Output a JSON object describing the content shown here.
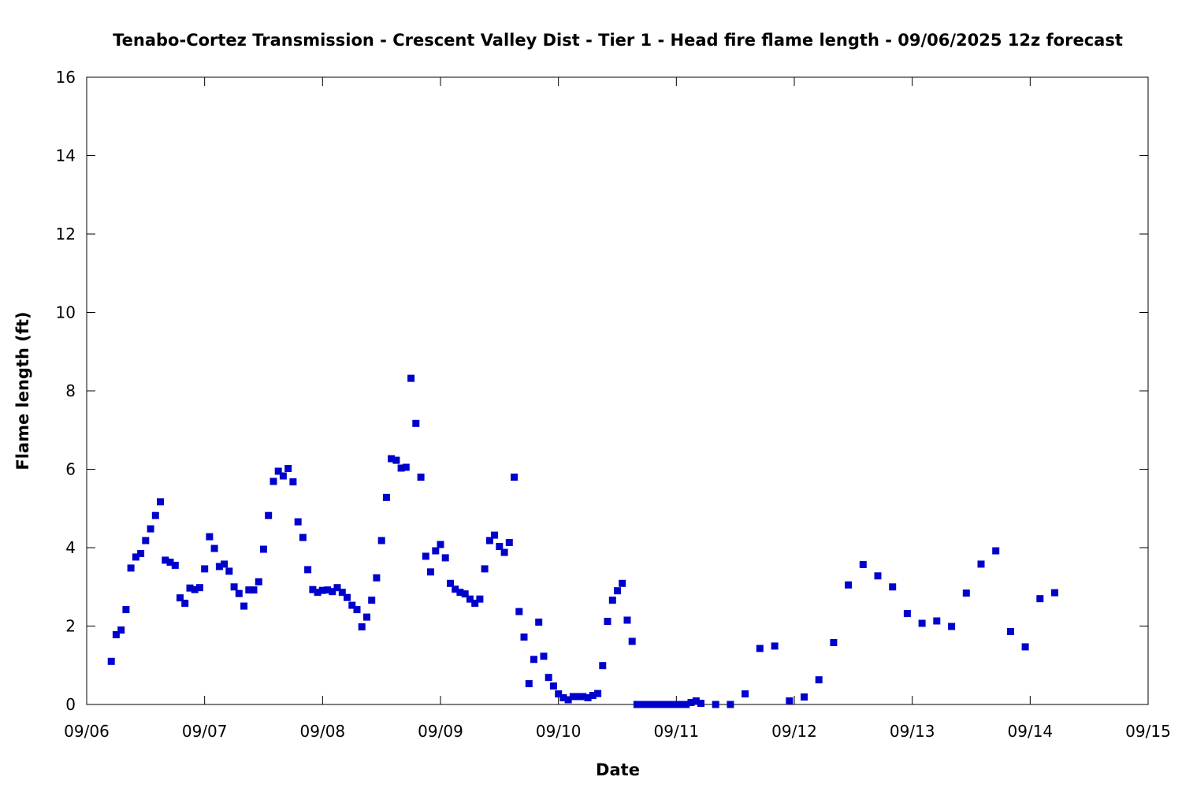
{
  "chart_data": {
    "type": "scatter",
    "title": "Tenabo-Cortez Transmission - Crescent Valley Dist - Tier 1 - Head fire flame length - 09/06/2025 12z forecast",
    "xlabel": "Date",
    "ylabel": "Flame length (ft)",
    "xlim": [
      "09/06",
      "09/15"
    ],
    "ylim": [
      0,
      16
    ],
    "x_ticks": [
      "09/06",
      "09/07",
      "09/08",
      "09/09",
      "09/10",
      "09/11",
      "09/12",
      "09/13",
      "09/14",
      "09/15"
    ],
    "y_ticks": [
      "0",
      "2",
      "4",
      "6",
      "8",
      "10",
      "12",
      "14",
      "16"
    ],
    "marker_color": "#0000cc",
    "grid": false,
    "points": [
      {
        "x": "09/06 05:00",
        "y": 1.1
      },
      {
        "x": "09/06 06:00",
        "y": 1.78
      },
      {
        "x": "09/06 07:00",
        "y": 1.9
      },
      {
        "x": "09/06 08:00",
        "y": 2.42
      },
      {
        "x": "09/06 09:00",
        "y": 3.48
      },
      {
        "x": "09/06 10:00",
        "y": 3.76
      },
      {
        "x": "09/06 11:00",
        "y": 3.85
      },
      {
        "x": "09/06 12:00",
        "y": 4.18
      },
      {
        "x": "09/06 13:00",
        "y": 4.48
      },
      {
        "x": "09/06 14:00",
        "y": 4.82
      },
      {
        "x": "09/06 15:00",
        "y": 5.17
      },
      {
        "x": "09/06 16:00",
        "y": 3.68
      },
      {
        "x": "09/06 17:00",
        "y": 3.63
      },
      {
        "x": "09/06 18:00",
        "y": 3.55
      },
      {
        "x": "09/06 19:00",
        "y": 2.72
      },
      {
        "x": "09/06 20:00",
        "y": 2.58
      },
      {
        "x": "09/06 21:00",
        "y": 2.97
      },
      {
        "x": "09/06 22:00",
        "y": 2.93
      },
      {
        "x": "09/06 23:00",
        "y": 2.98
      },
      {
        "x": "09/07 00:00",
        "y": 3.46
      },
      {
        "x": "09/07 01:00",
        "y": 4.28
      },
      {
        "x": "09/07 02:00",
        "y": 3.98
      },
      {
        "x": "09/07 03:00",
        "y": 3.52
      },
      {
        "x": "09/07 04:00",
        "y": 3.58
      },
      {
        "x": "09/07 05:00",
        "y": 3.4
      },
      {
        "x": "09/07 06:00",
        "y": 3.0
      },
      {
        "x": "09/07 07:00",
        "y": 2.83
      },
      {
        "x": "09/07 08:00",
        "y": 2.51
      },
      {
        "x": "09/07 09:00",
        "y": 2.92
      },
      {
        "x": "09/07 10:00",
        "y": 2.92
      },
      {
        "x": "09/07 11:00",
        "y": 3.13
      },
      {
        "x": "09/07 12:00",
        "y": 3.96
      },
      {
        "x": "09/07 13:00",
        "y": 4.82
      },
      {
        "x": "09/07 14:00",
        "y": 5.69
      },
      {
        "x": "09/07 15:00",
        "y": 5.95
      },
      {
        "x": "09/07 16:00",
        "y": 5.83
      },
      {
        "x": "09/07 17:00",
        "y": 6.02
      },
      {
        "x": "09/07 18:00",
        "y": 5.68
      },
      {
        "x": "09/07 19:00",
        "y": 4.66
      },
      {
        "x": "09/07 20:00",
        "y": 4.26
      },
      {
        "x": "09/07 21:00",
        "y": 3.44
      },
      {
        "x": "09/07 22:00",
        "y": 2.93
      },
      {
        "x": "09/07 23:00",
        "y": 2.86
      },
      {
        "x": "09/08 00:00",
        "y": 2.91
      },
      {
        "x": "09/08 01:00",
        "y": 2.92
      },
      {
        "x": "09/08 02:00",
        "y": 2.88
      },
      {
        "x": "09/08 03:00",
        "y": 2.98
      },
      {
        "x": "09/08 04:00",
        "y": 2.86
      },
      {
        "x": "09/08 05:00",
        "y": 2.73
      },
      {
        "x": "09/08 06:00",
        "y": 2.53
      },
      {
        "x": "09/08 07:00",
        "y": 2.42
      },
      {
        "x": "09/08 08:00",
        "y": 1.98
      },
      {
        "x": "09/08 09:00",
        "y": 2.23
      },
      {
        "x": "09/08 10:00",
        "y": 2.66
      },
      {
        "x": "09/08 11:00",
        "y": 3.23
      },
      {
        "x": "09/08 12:00",
        "y": 4.18
      },
      {
        "x": "09/08 13:00",
        "y": 5.28
      },
      {
        "x": "09/08 14:00",
        "y": 6.27
      },
      {
        "x": "09/08 15:00",
        "y": 6.23
      },
      {
        "x": "09/08 16:00",
        "y": 6.03
      },
      {
        "x": "09/08 17:00",
        "y": 6.05
      },
      {
        "x": "09/08 18:00",
        "y": 8.32
      },
      {
        "x": "09/08 19:00",
        "y": 7.17
      },
      {
        "x": "09/08 20:00",
        "y": 5.8
      },
      {
        "x": "09/08 21:00",
        "y": 3.78
      },
      {
        "x": "09/08 22:00",
        "y": 3.38
      },
      {
        "x": "09/08 23:00",
        "y": 3.92
      },
      {
        "x": "09/09 00:00",
        "y": 4.08
      },
      {
        "x": "09/09 01:00",
        "y": 3.74
      },
      {
        "x": "09/09 02:00",
        "y": 3.09
      },
      {
        "x": "09/09 03:00",
        "y": 2.94
      },
      {
        "x": "09/09 04:00",
        "y": 2.86
      },
      {
        "x": "09/09 05:00",
        "y": 2.82
      },
      {
        "x": "09/09 06:00",
        "y": 2.69
      },
      {
        "x": "09/09 07:00",
        "y": 2.58
      },
      {
        "x": "09/09 08:00",
        "y": 2.69
      },
      {
        "x": "09/09 09:00",
        "y": 3.46
      },
      {
        "x": "09/09 10:00",
        "y": 4.18
      },
      {
        "x": "09/09 11:00",
        "y": 4.32
      },
      {
        "x": "09/09 12:00",
        "y": 4.03
      },
      {
        "x": "09/09 13:00",
        "y": 3.88
      },
      {
        "x": "09/09 14:00",
        "y": 4.13
      },
      {
        "x": "09/09 15:00",
        "y": 5.8
      },
      {
        "x": "09/09 16:00",
        "y": 2.37
      },
      {
        "x": "09/09 17:00",
        "y": 1.72
      },
      {
        "x": "09/09 18:00",
        "y": 0.53
      },
      {
        "x": "09/09 19:00",
        "y": 1.15
      },
      {
        "x": "09/09 20:00",
        "y": 2.1
      },
      {
        "x": "09/09 21:00",
        "y": 1.23
      },
      {
        "x": "09/09 22:00",
        "y": 0.69
      },
      {
        "x": "09/09 23:00",
        "y": 0.47
      },
      {
        "x": "09/10 00:00",
        "y": 0.27
      },
      {
        "x": "09/10 01:00",
        "y": 0.17
      },
      {
        "x": "09/10 02:00",
        "y": 0.12
      },
      {
        "x": "09/10 03:00",
        "y": 0.2
      },
      {
        "x": "09/10 04:00",
        "y": 0.2
      },
      {
        "x": "09/10 05:00",
        "y": 0.2
      },
      {
        "x": "09/10 06:00",
        "y": 0.17
      },
      {
        "x": "09/10 07:00",
        "y": 0.23
      },
      {
        "x": "09/10 08:00",
        "y": 0.28
      },
      {
        "x": "09/10 09:00",
        "y": 0.99
      },
      {
        "x": "09/10 10:00",
        "y": 2.12
      },
      {
        "x": "09/10 11:00",
        "y": 2.66
      },
      {
        "x": "09/10 12:00",
        "y": 2.9
      },
      {
        "x": "09/10 13:00",
        "y": 3.09
      },
      {
        "x": "09/10 14:00",
        "y": 2.15
      },
      {
        "x": "09/10 15:00",
        "y": 1.61
      },
      {
        "x": "09/10 16:00",
        "y": 0.0
      },
      {
        "x": "09/10 17:00",
        "y": 0.0
      },
      {
        "x": "09/10 18:00",
        "y": 0.0
      },
      {
        "x": "09/10 19:00",
        "y": 0.0
      },
      {
        "x": "09/10 20:00",
        "y": 0.0
      },
      {
        "x": "09/10 21:00",
        "y": 0.0
      },
      {
        "x": "09/10 22:00",
        "y": 0.0
      },
      {
        "x": "09/10 23:00",
        "y": 0.0
      },
      {
        "x": "09/11 00:00",
        "y": 0.0
      },
      {
        "x": "09/11 01:00",
        "y": 0.0
      },
      {
        "x": "09/11 02:00",
        "y": 0.0
      },
      {
        "x": "09/11 03:00",
        "y": 0.05
      },
      {
        "x": "09/11 04:00",
        "y": 0.09
      },
      {
        "x": "09/11 05:00",
        "y": 0.03
      },
      {
        "x": "09/11 08:00",
        "y": 0.0
      },
      {
        "x": "09/11 11:00",
        "y": 0.0
      },
      {
        "x": "09/11 14:00",
        "y": 0.27
      },
      {
        "x": "09/11 17:00",
        "y": 1.43
      },
      {
        "x": "09/11 20:00",
        "y": 1.49
      },
      {
        "x": "09/11 23:00",
        "y": 0.09
      },
      {
        "x": "09/12 02:00",
        "y": 0.19
      },
      {
        "x": "09/12 05:00",
        "y": 0.63
      },
      {
        "x": "09/12 08:00",
        "y": 1.58
      },
      {
        "x": "09/12 11:00",
        "y": 3.05
      },
      {
        "x": "09/12 14:00",
        "y": 3.57
      },
      {
        "x": "09/12 17:00",
        "y": 3.28
      },
      {
        "x": "09/12 20:00",
        "y": 3.0
      },
      {
        "x": "09/12 23:00",
        "y": 2.32
      },
      {
        "x": "09/13 02:00",
        "y": 2.07
      },
      {
        "x": "09/13 05:00",
        "y": 2.13
      },
      {
        "x": "09/13 08:00",
        "y": 1.99
      },
      {
        "x": "09/13 11:00",
        "y": 2.84
      },
      {
        "x": "09/13 14:00",
        "y": 3.58
      },
      {
        "x": "09/13 17:00",
        "y": 3.92
      },
      {
        "x": "09/13 20:00",
        "y": 1.86
      },
      {
        "x": "09/13 23:00",
        "y": 1.47
      },
      {
        "x": "09/14 02:00",
        "y": 2.7
      },
      {
        "x": "09/14 05:00",
        "y": 2.85
      }
    ]
  }
}
